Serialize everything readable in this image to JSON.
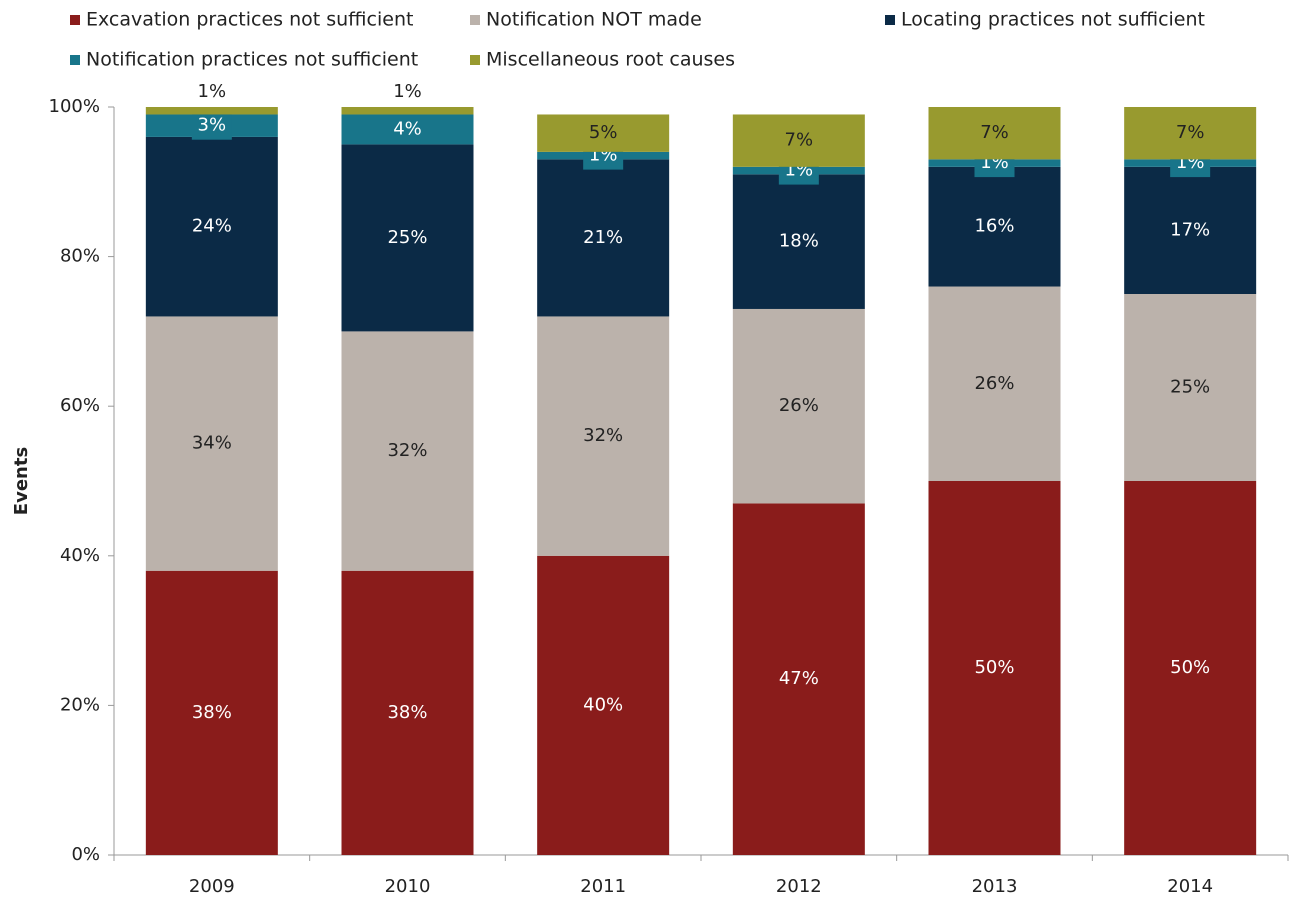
{
  "chart_data": {
    "type": "stacked_bar",
    "y_label": "Events",
    "categories": [
      "2009",
      "2010",
      "2011",
      "2012",
      "2013",
      "2014"
    ],
    "series": [
      {
        "name": "Excavation practices not sufficient",
        "color": "#8a1c1b",
        "values": [
          38,
          38,
          40,
          47,
          50,
          50
        ],
        "value_labels": [
          "38%",
          "38%",
          "40%",
          "47%",
          "50%",
          "50%"
        ]
      },
      {
        "name": "Notification NOT made",
        "color": "#bbb2ab",
        "values": [
          34,
          32,
          32,
          26,
          26,
          25
        ],
        "value_labels": [
          "34%",
          "32%",
          "32%",
          "26%",
          "26%",
          "25%"
        ]
      },
      {
        "name": "Locating practices not sufficient",
        "color": "#0b2a46",
        "values": [
          24,
          25,
          21,
          18,
          16,
          17
        ],
        "value_labels": [
          "24%",
          "25%",
          "21%",
          "18%",
          "16%",
          "17%"
        ]
      },
      {
        "name": "Notification practices not sufficient",
        "color": "#18758a",
        "values": [
          3,
          4,
          1,
          1,
          1,
          1
        ],
        "value_labels": [
          "3%",
          "4%",
          "1%",
          "1%",
          "1%",
          "1%"
        ]
      },
      {
        "name": "Miscellaneous root causes",
        "color": "#989a2f",
        "values": [
          1,
          1,
          5,
          7,
          7,
          7
        ],
        "value_labels": [
          "1%",
          "1%",
          "5%",
          "7%",
          "7%",
          "7%"
        ]
      }
    ],
    "ylim": [
      0,
      100
    ],
    "yticks": [
      {
        "value": 0,
        "label": "0%"
      },
      {
        "value": 20,
        "label": "20%"
      },
      {
        "value": 40,
        "label": "40%"
      },
      {
        "value": 60,
        "label": "60%"
      },
      {
        "value": 80,
        "label": "80%"
      },
      {
        "value": 100,
        "label": "100%"
      }
    ],
    "legend": "top"
  }
}
